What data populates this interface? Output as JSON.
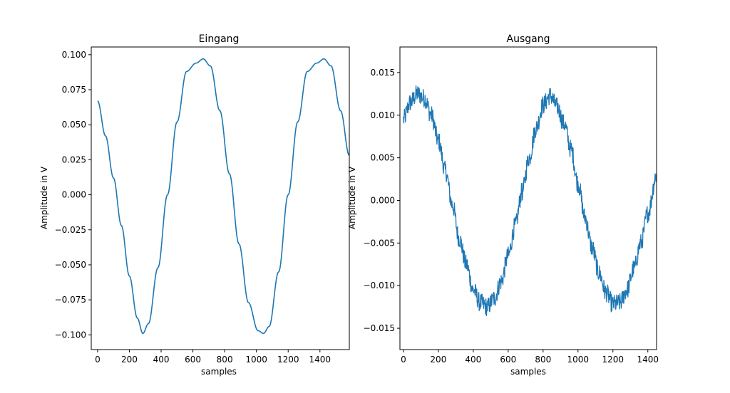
{
  "chart_data": [
    {
      "type": "line",
      "title": "Eingang",
      "xlabel": "samples",
      "ylabel": "Amplitude in V",
      "xlim": [
        -40,
        1585
      ],
      "ylim": [
        -0.1105,
        0.1055
      ],
      "xticks": [
        0,
        200,
        400,
        600,
        800,
        1000,
        1200,
        1400
      ],
      "yticks": [
        -0.1,
        -0.075,
        -0.05,
        -0.025,
        0.0,
        0.025,
        0.05,
        0.075,
        0.1
      ],
      "xtick_labels": [
        "0",
        "200",
        "400",
        "600",
        "800",
        "1000",
        "1200",
        "1400"
      ],
      "ytick_labels": [
        "−0.100",
        "−0.075",
        "−0.050",
        "−0.025",
        "0.000",
        "0.025",
        "0.050",
        "0.075",
        "0.100"
      ],
      "grid": false,
      "series_color": "#1f77b4",
      "series": [
        {
          "x": [
            0,
            50,
            100,
            150,
            200,
            250,
            285,
            320,
            380,
            440,
            500,
            560,
            620,
            665,
            710,
            770,
            830,
            890,
            950,
            1010,
            1045,
            1080,
            1140,
            1200,
            1260,
            1320,
            1380,
            1425,
            1470,
            1530,
            1585
          ],
          "values": [
            0.067,
            0.042,
            0.012,
            -0.022,
            -0.058,
            -0.088,
            -0.099,
            -0.092,
            -0.052,
            0.0,
            0.052,
            0.088,
            0.094,
            0.097,
            0.092,
            0.06,
            0.015,
            -0.035,
            -0.077,
            -0.097,
            -0.099,
            -0.094,
            -0.055,
            0.0,
            0.052,
            0.088,
            0.094,
            0.097,
            0.092,
            0.06,
            0.028
          ]
        }
      ]
    },
    {
      "type": "line",
      "title": "Ausgang",
      "xlabel": "samples",
      "ylabel": "Amplitude in V",
      "xlim": [
        -20,
        1450
      ],
      "ylim": [
        -0.0175,
        0.018
      ],
      "xticks": [
        0,
        200,
        400,
        600,
        800,
        1000,
        1200,
        1400
      ],
      "yticks": [
        -0.015,
        -0.01,
        -0.005,
        0.0,
        0.005,
        0.01,
        0.015
      ],
      "xtick_labels": [
        "0",
        "200",
        "400",
        "600",
        "800",
        "1000",
        "1200",
        "1400"
      ],
      "ytick_labels": [
        "−0.015",
        "−0.010",
        "−0.005",
        "0.000",
        "0.005",
        "0.010",
        "0.015"
      ],
      "grid": false,
      "series_color": "#1f77b4",
      "series": [
        {
          "x": [
            0,
            40,
            80,
            120,
            160,
            200,
            240,
            280,
            320,
            360,
            400,
            440,
            480,
            520,
            560,
            600,
            640,
            680,
            720,
            760,
            800,
            840,
            880,
            920,
            960,
            1000,
            1040,
            1080,
            1120,
            1160,
            1200,
            1240,
            1280,
            1320,
            1360,
            1400,
            1450
          ],
          "values": [
            0.0095,
            0.0115,
            0.0125,
            0.012,
            0.01,
            0.007,
            0.0035,
            -0.0005,
            -0.0045,
            -0.0075,
            -0.0105,
            -0.012,
            -0.0125,
            -0.0115,
            -0.0095,
            -0.0065,
            -0.003,
            0.001,
            0.005,
            0.0085,
            0.0112,
            0.0123,
            0.011,
            0.009,
            0.006,
            0.002,
            -0.002,
            -0.0055,
            -0.0085,
            -0.0108,
            -0.0122,
            -0.012,
            -0.0105,
            -0.008,
            -0.005,
            -0.0015,
            0.003
          ]
        }
      ]
    }
  ]
}
